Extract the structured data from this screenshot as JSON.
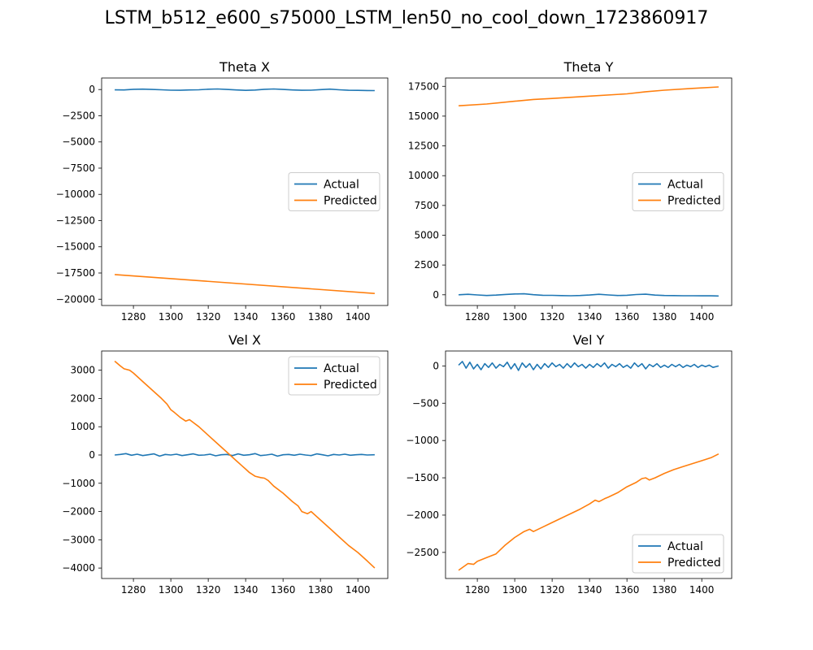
{
  "figure": {
    "suptitle": "LSTM_b512_e600_s75000_LSTM_len50_no_cool_down_1723860917"
  },
  "colors": {
    "actual": "#1f77b4",
    "predicted": "#ff7f0e"
  },
  "chart_data": [
    {
      "type": "line",
      "title": "Theta X",
      "xlim": [
        1263,
        1416
      ],
      "ylim": [
        -20600,
        1100
      ],
      "xticks": [
        1280,
        1300,
        1320,
        1340,
        1360,
        1380,
        1400
      ],
      "yticks": [
        0,
        -2500,
        -5000,
        -7500,
        -10000,
        -12500,
        -15000,
        -17500,
        -20000
      ],
      "ytick_labels": [
        "0",
        "−2500",
        "−5000",
        "−7500",
        "−10000",
        "−12500",
        "−15000",
        "−17500",
        "−20000"
      ],
      "legend_loc": "center-right",
      "series": [
        {
          "name": "Actual",
          "color": "#1f77b4",
          "x": [
            1270,
            1275,
            1280,
            1285,
            1290,
            1295,
            1300,
            1305,
            1310,
            1315,
            1320,
            1325,
            1330,
            1335,
            1340,
            1345,
            1350,
            1355,
            1360,
            1365,
            1370,
            1375,
            1380,
            1385,
            1390,
            1395,
            1400,
            1405,
            1409
          ],
          "y": [
            -30,
            -40,
            20,
            40,
            10,
            -20,
            -60,
            -70,
            -40,
            -20,
            30,
            50,
            10,
            -40,
            -80,
            -50,
            20,
            50,
            10,
            -40,
            -70,
            -60,
            -10,
            40,
            -20,
            -70,
            -80,
            -90,
            -100
          ]
        },
        {
          "name": "Predicted",
          "color": "#ff7f0e",
          "x": [
            1270,
            1409
          ],
          "y": [
            -17650,
            -19450
          ]
        }
      ]
    },
    {
      "type": "line",
      "title": "Theta Y",
      "xlim": [
        1263,
        1416
      ],
      "ylim": [
        -900,
        18200
      ],
      "xticks": [
        1280,
        1300,
        1320,
        1340,
        1360,
        1380,
        1400
      ],
      "yticks": [
        0,
        2500,
        5000,
        7500,
        10000,
        12500,
        15000,
        17500
      ],
      "ytick_labels": [
        "0",
        "2500",
        "5000",
        "7500",
        "10000",
        "12500",
        "15000",
        "17500"
      ],
      "legend_loc": "center-right",
      "series": [
        {
          "name": "Actual",
          "color": "#1f77b4",
          "x": [
            1270,
            1275,
            1280,
            1285,
            1290,
            1295,
            1300,
            1305,
            1310,
            1315,
            1320,
            1325,
            1330,
            1335,
            1340,
            1345,
            1350,
            1355,
            1360,
            1365,
            1370,
            1375,
            1380,
            1385,
            1390,
            1395,
            1400,
            1405,
            1409
          ],
          "y": [
            0,
            40,
            -10,
            -60,
            -30,
            30,
            70,
            80,
            10,
            -40,
            -50,
            -70,
            -80,
            -60,
            -20,
            40,
            -10,
            -60,
            -40,
            20,
            50,
            -30,
            -60,
            -70,
            -80,
            -80,
            -90,
            -90,
            -100
          ]
        },
        {
          "name": "Predicted",
          "color": "#ff7f0e",
          "x": [
            1270,
            1285,
            1300,
            1310,
            1320,
            1340,
            1360,
            1370,
            1380,
            1395,
            1409
          ],
          "y": [
            15870,
            16020,
            16250,
            16400,
            16480,
            16680,
            16870,
            17050,
            17180,
            17330,
            17450
          ]
        }
      ]
    },
    {
      "type": "line",
      "title": "Vel X",
      "xlim": [
        1263,
        1416
      ],
      "ylim": [
        -4370,
        3680
      ],
      "xticks": [
        1280,
        1300,
        1320,
        1340,
        1360,
        1380,
        1400
      ],
      "yticks": [
        3000,
        2000,
        1000,
        0,
        -1000,
        -2000,
        -3000,
        -4000
      ],
      "ytick_labels": [
        "3000",
        "2000",
        "1000",
        "0",
        "−1000",
        "−2000",
        "−3000",
        "−4000"
      ],
      "legend_loc": "top-right",
      "series": [
        {
          "name": "Actual",
          "color": "#1f77b4",
          "x": [
            1270,
            1273,
            1276,
            1279,
            1282,
            1285,
            1288,
            1291,
            1294,
            1297,
            1300,
            1303,
            1306,
            1309,
            1312,
            1315,
            1318,
            1321,
            1324,
            1327,
            1330,
            1333,
            1336,
            1339,
            1342,
            1345,
            1348,
            1351,
            1354,
            1357,
            1360,
            1363,
            1366,
            1369,
            1372,
            1375,
            1378,
            1381,
            1384,
            1387,
            1390,
            1393,
            1396,
            1399,
            1402,
            1405,
            1409
          ],
          "y": [
            0,
            20,
            50,
            -10,
            30,
            -20,
            10,
            40,
            -40,
            20,
            0,
            30,
            -20,
            10,
            40,
            -10,
            0,
            30,
            -30,
            10,
            20,
            -20,
            40,
            -10,
            10,
            50,
            -20,
            0,
            30,
            -40,
            10,
            20,
            -10,
            30,
            0,
            -20,
            40,
            10,
            -30,
            20,
            0,
            30,
            -10,
            10,
            20,
            0,
            10
          ]
        },
        {
          "name": "Predicted",
          "color": "#ff7f0e",
          "x": [
            1270,
            1273,
            1275,
            1278,
            1280,
            1285,
            1290,
            1295,
            1298,
            1300,
            1302,
            1305,
            1308,
            1310,
            1312,
            1315,
            1320,
            1325,
            1330,
            1335,
            1338,
            1340,
            1342,
            1345,
            1348,
            1350,
            1352,
            1355,
            1360,
            1365,
            1368,
            1370,
            1373,
            1375,
            1380,
            1385,
            1390,
            1395,
            1400,
            1405,
            1409
          ],
          "y": [
            3320,
            3150,
            3050,
            3000,
            2900,
            2600,
            2300,
            2000,
            1800,
            1600,
            1500,
            1330,
            1200,
            1250,
            1150,
            1000,
            700,
            400,
            100,
            -200,
            -380,
            -500,
            -620,
            -750,
            -800,
            -820,
            -900,
            -1100,
            -1350,
            -1650,
            -1800,
            -2000,
            -2080,
            -2000,
            -2300,
            -2600,
            -2900,
            -3200,
            -3450,
            -3750,
            -4000
          ]
        }
      ]
    },
    {
      "type": "line",
      "title": "Vel Y",
      "xlim": [
        1263,
        1416
      ],
      "ylim": [
        -2850,
        200
      ],
      "xticks": [
        1280,
        1300,
        1320,
        1340,
        1360,
        1380,
        1400
      ],
      "yticks": [
        0,
        -500,
        -1000,
        -1500,
        -2000,
        -2500
      ],
      "ytick_labels": [
        "0",
        "−500",
        "−1000",
        "−1500",
        "−2000",
        "−2500"
      ],
      "legend_loc": "bottom-right",
      "series": [
        {
          "name": "Actual",
          "color": "#1f77b4",
          "x": [
            1270,
            1272,
            1274,
            1276,
            1278,
            1280,
            1282,
            1284,
            1286,
            1288,
            1290,
            1292,
            1294,
            1296,
            1298,
            1300,
            1302,
            1304,
            1306,
            1308,
            1310,
            1312,
            1314,
            1316,
            1318,
            1320,
            1322,
            1324,
            1326,
            1328,
            1330,
            1332,
            1334,
            1336,
            1338,
            1340,
            1342,
            1344,
            1346,
            1348,
            1350,
            1352,
            1354,
            1356,
            1358,
            1360,
            1362,
            1364,
            1366,
            1368,
            1370,
            1372,
            1374,
            1376,
            1378,
            1380,
            1382,
            1384,
            1386,
            1388,
            1390,
            1392,
            1394,
            1396,
            1398,
            1400,
            1402,
            1404,
            1406,
            1409
          ],
          "y": [
            10,
            60,
            -30,
            50,
            -40,
            20,
            -50,
            30,
            -20,
            40,
            -30,
            20,
            -10,
            50,
            -40,
            30,
            -60,
            40,
            -20,
            30,
            -50,
            20,
            -40,
            30,
            -20,
            40,
            -10,
            20,
            -30,
            30,
            -20,
            40,
            -10,
            20,
            -30,
            20,
            -20,
            30,
            -10,
            40,
            -30,
            20,
            -10,
            30,
            -20,
            10,
            -30,
            40,
            -10,
            30,
            -40,
            20,
            -10,
            30,
            -20,
            10,
            -20,
            20,
            -10,
            20,
            -20,
            10,
            -10,
            20,
            -20,
            10,
            -10,
            10,
            -20,
            0
          ]
        },
        {
          "name": "Predicted",
          "color": "#ff7f0e",
          "x": [
            1270,
            1275,
            1278,
            1280,
            1285,
            1290,
            1295,
            1300,
            1305,
            1308,
            1310,
            1315,
            1320,
            1325,
            1330,
            1335,
            1340,
            1343,
            1345,
            1348,
            1350,
            1355,
            1360,
            1365,
            1368,
            1370,
            1372,
            1375,
            1380,
            1385,
            1390,
            1395,
            1400,
            1405,
            1409
          ],
          "y": [
            -2740,
            -2650,
            -2660,
            -2620,
            -2570,
            -2520,
            -2400,
            -2300,
            -2220,
            -2190,
            -2220,
            -2160,
            -2100,
            -2040,
            -1980,
            -1920,
            -1850,
            -1800,
            -1820,
            -1780,
            -1760,
            -1700,
            -1620,
            -1560,
            -1510,
            -1500,
            -1530,
            -1500,
            -1440,
            -1390,
            -1350,
            -1310,
            -1270,
            -1230,
            -1180
          ]
        }
      ]
    }
  ]
}
